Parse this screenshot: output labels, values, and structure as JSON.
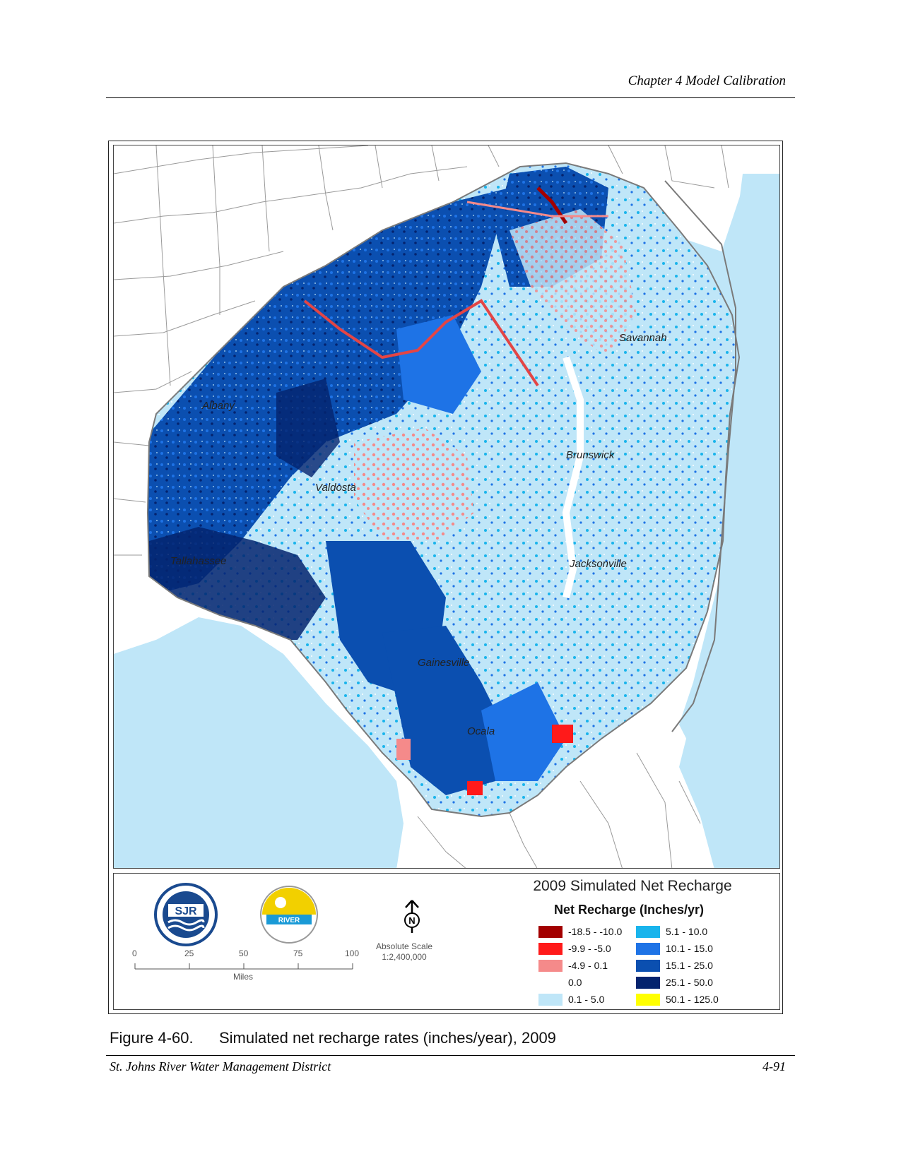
{
  "header": {
    "chapter": "Chapter 4 Model Calibration"
  },
  "map": {
    "cities": [
      {
        "name": "Savannah"
      },
      {
        "name": "Albany"
      },
      {
        "name": "Brunswick"
      },
      {
        "name": "Valdosta"
      },
      {
        "name": "Jacksonville"
      },
      {
        "name": "Tallahassee"
      },
      {
        "name": "Gainesville"
      },
      {
        "name": "Ocala"
      }
    ]
  },
  "scale_bar": {
    "ticks": [
      "0",
      "25",
      "50",
      "75",
      "100"
    ],
    "unit": "Miles"
  },
  "absolute_scale": {
    "label": "Absolute Scale",
    "value": "1:2,400,000"
  },
  "north_arrow": {
    "letter": "N"
  },
  "legend": {
    "title": "2009 Simulated Net Recharge",
    "subtitle": "Net Recharge (Inches/yr)",
    "items": [
      {
        "label": "-18.5 - -10.0",
        "color": "#a30000"
      },
      {
        "label": "-9.9 - -5.0",
        "color": "#ff1a1a"
      },
      {
        "label": "-4.9 - 0.1",
        "color": "#f58a8a"
      },
      {
        "label": "0.0",
        "color": "#ffffff"
      },
      {
        "label": "0.1 - 5.0",
        "color": "#bfe6f8"
      },
      {
        "label": "5.1 - 10.0",
        "color": "#19b4ec"
      },
      {
        "label": "10.1 - 15.0",
        "color": "#1e73e6"
      },
      {
        "label": "15.1 - 25.0",
        "color": "#0b4fb0"
      },
      {
        "label": "25.1 - 50.0",
        "color": "#04236e"
      },
      {
        "label": "50.1 - 125.0",
        "color": "#ffff00"
      }
    ]
  },
  "logos": {
    "left_text": "SJR",
    "right_text": "RIVER"
  },
  "caption": {
    "number": "Figure 4-60.",
    "text": "Simulated net recharge rates (inches/year), 2009"
  },
  "footer": {
    "left": "St. Johns River Water Management District",
    "right": "4-91"
  }
}
